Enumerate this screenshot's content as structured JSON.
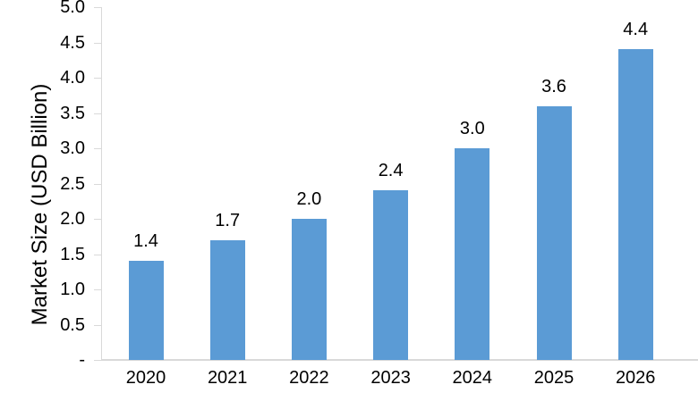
{
  "chart_data": {
    "type": "bar",
    "title": "",
    "categories": [
      "2020",
      "2021",
      "2022",
      "2023",
      "2024",
      "2025",
      "2026"
    ],
    "values": [
      1.4,
      1.7,
      2.0,
      2.4,
      3.0,
      3.6,
      4.4
    ],
    "value_labels": [
      "1.4",
      "1.7",
      "2.0",
      "2.4",
      "3.0",
      "3.6",
      "4.4"
    ],
    "ylabel": "Market Size (USD Billion)",
    "ylim": [
      0,
      5
    ],
    "ytick_step": 0.5,
    "ytick_labels": [
      "-",
      "0.5",
      "1.0",
      "1.5",
      "2.0",
      "2.5",
      "3.0",
      "3.5",
      "4.0",
      "4.5",
      "5.0"
    ],
    "grid": false,
    "legend": "none",
    "colors": {
      "bar": "#5B9BD5",
      "axis_line": "#D9D9D9",
      "text": "#000000"
    }
  }
}
